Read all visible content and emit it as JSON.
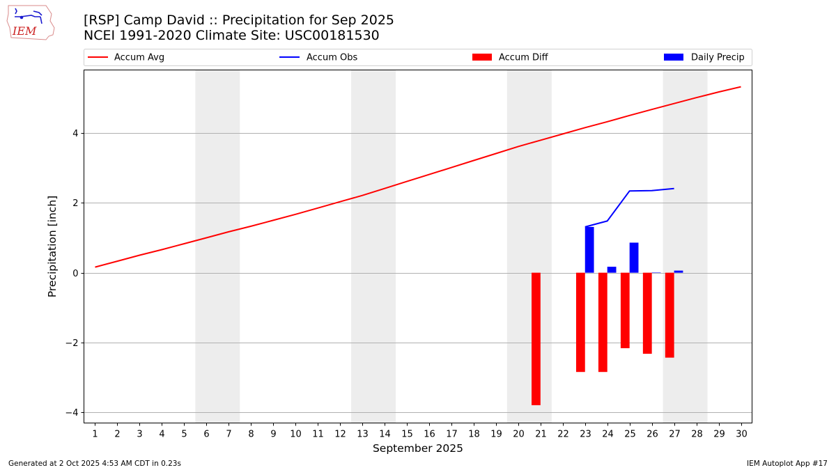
{
  "logo": {
    "text": "IEM"
  },
  "header": {
    "title_line1": "[RSP] Camp David :: Precipitation for Sep 2025",
    "title_line2": "NCEI 1991-2020 Climate Site: USC00181530"
  },
  "footer": {
    "left": "Generated at 2 Oct 2025 4:53 AM CDT in 0.23s",
    "right": "IEM Autoplot App #17"
  },
  "colors": {
    "accum_avg": "#ff0000",
    "accum_obs": "#0000ff",
    "accum_diff": "#ff0000",
    "daily_precip": "#0000ff",
    "weekend_shade": "#ededed",
    "grid": "#b0b0b0"
  },
  "chart_data": {
    "type": "bar+line",
    "title": "[RSP] Camp David :: Precipitation for Sep 2025",
    "subtitle": "NCEI 1991-2020 Climate Site: USC00181530",
    "xlabel": "September 2025",
    "ylabel": "Precipitation [inch]",
    "xlim": [
      0.5,
      30.5
    ],
    "ylim": [
      -4.3,
      5.8
    ],
    "xticks": [
      1,
      2,
      3,
      4,
      5,
      6,
      7,
      8,
      9,
      10,
      11,
      12,
      13,
      14,
      15,
      16,
      17,
      18,
      19,
      20,
      21,
      22,
      23,
      24,
      25,
      26,
      27,
      28,
      29,
      30
    ],
    "yticks": [
      -4,
      -2,
      0,
      2,
      4
    ],
    "ytick_labels": [
      "−4",
      "−2",
      "0",
      "2",
      "4"
    ],
    "grid": "y",
    "legend_position": "top (above plot, horizontal)",
    "weekend_spans": [
      [
        5.5,
        7.5
      ],
      [
        12.5,
        14.5
      ],
      [
        19.5,
        21.5
      ],
      [
        26.5,
        28.5
      ]
    ],
    "series": [
      {
        "name": "Accum Avg",
        "kind": "line",
        "x": [
          1,
          2,
          3,
          4,
          5,
          6,
          7,
          8,
          9,
          10,
          11,
          12,
          13,
          14,
          15,
          16,
          17,
          18,
          19,
          20,
          21,
          22,
          23,
          24,
          25,
          26,
          27,
          28,
          29,
          30
        ],
        "values": [
          0.16,
          0.33,
          0.5,
          0.66,
          0.83,
          1.0,
          1.17,
          1.33,
          1.5,
          1.67,
          1.85,
          2.03,
          2.21,
          2.41,
          2.61,
          2.81,
          3.01,
          3.21,
          3.41,
          3.61,
          3.79,
          3.97,
          4.15,
          4.32,
          4.5,
          4.67,
          4.84,
          5.01,
          5.17,
          5.32
        ]
      },
      {
        "name": "Accum Obs",
        "kind": "line",
        "x": [
          23,
          24,
          25,
          26,
          27
        ],
        "values": [
          1.31,
          1.48,
          2.34,
          2.35,
          2.41
        ]
      },
      {
        "name": "Accum Diff",
        "kind": "bar",
        "offset": "left",
        "x": [
          21,
          23,
          24,
          25,
          26,
          27
        ],
        "values": [
          -3.79,
          -2.84,
          -2.84,
          -2.16,
          -2.32,
          -2.43
        ]
      },
      {
        "name": "Daily Precip",
        "kind": "bar",
        "offset": "right",
        "x": [
          23,
          24,
          25,
          26,
          27
        ],
        "values": [
          1.31,
          0.17,
          0.86,
          0.01,
          0.06
        ]
      }
    ]
  }
}
